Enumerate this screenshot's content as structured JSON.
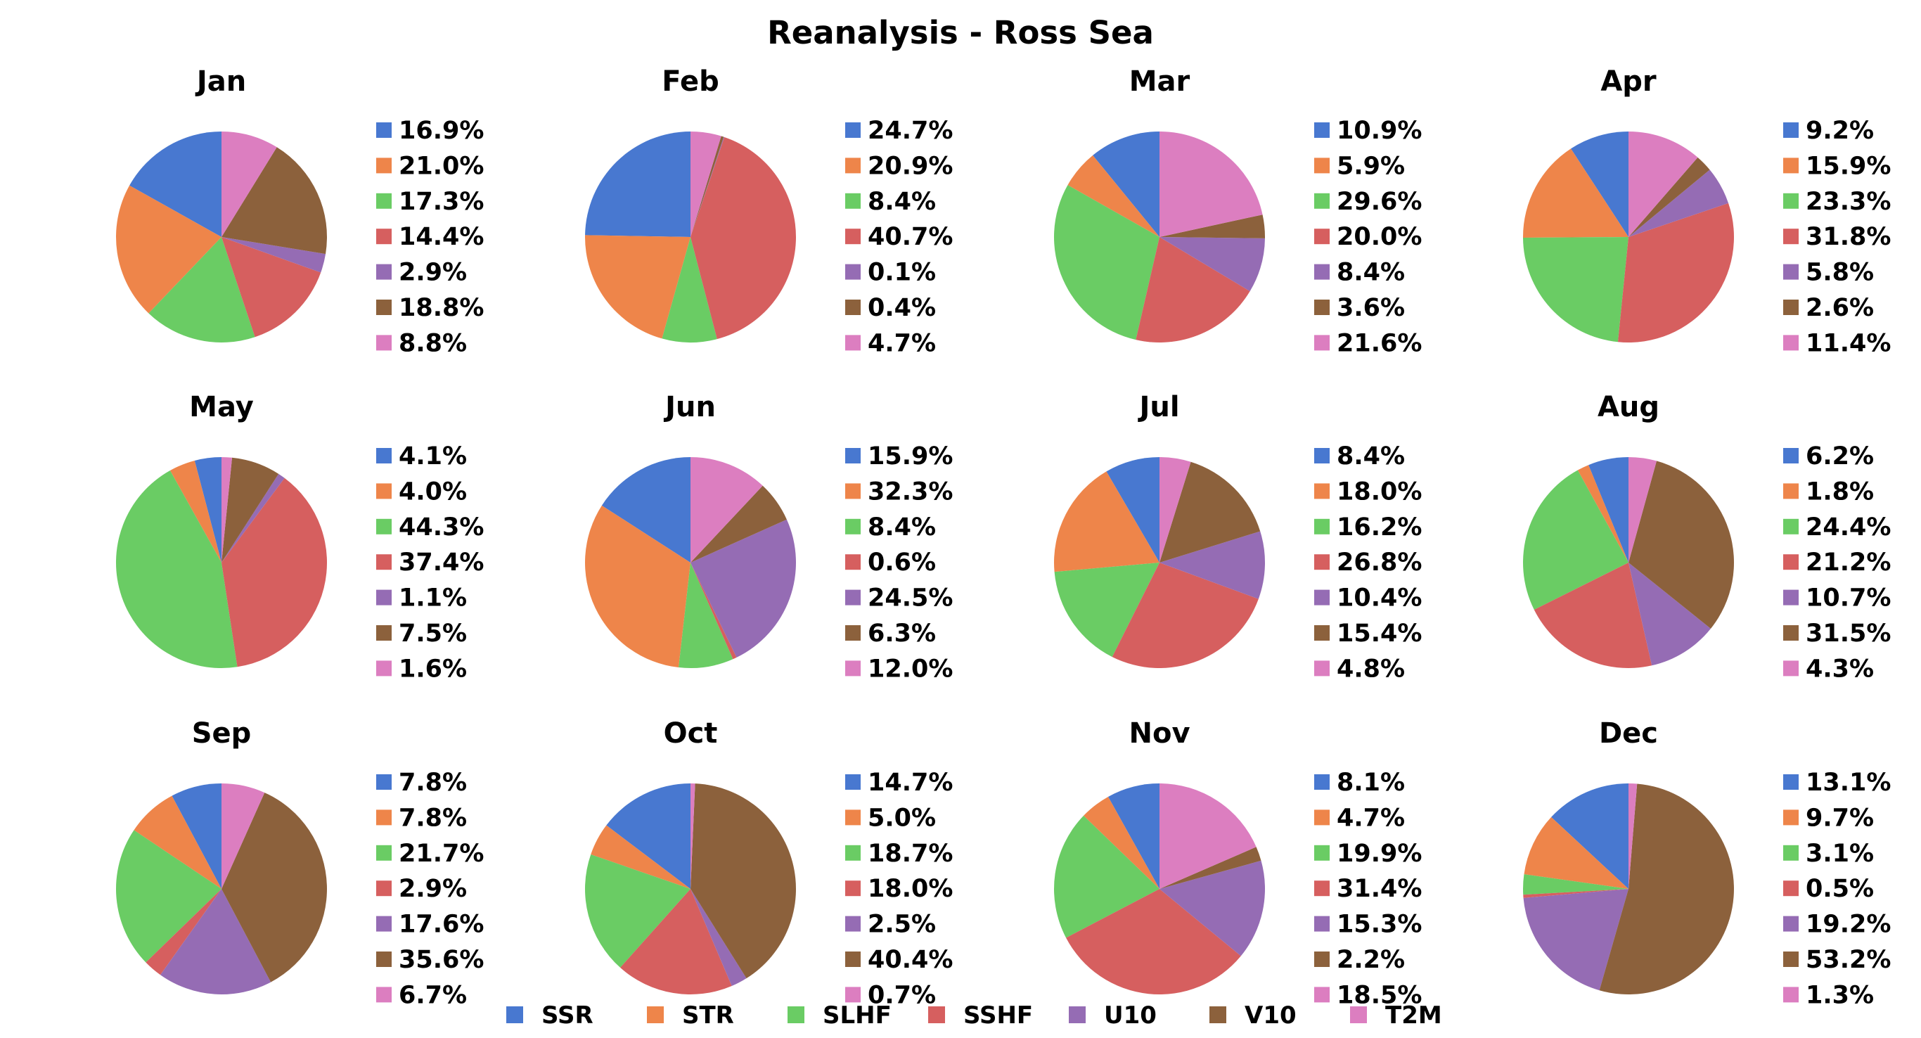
{
  "chart_data": {
    "type": "pie",
    "title": "Reanalysis - Ross Sea",
    "legend": {
      "placement": "bottom-center",
      "labels": [
        "SSR",
        "STR",
        "SLHF",
        "SSHF",
        "U10",
        "V10",
        "T2M"
      ]
    },
    "colors": [
      "#4878d0",
      "#ee854a",
      "#6acc64",
      "#d65f5f",
      "#956cb4",
      "#8c613c",
      "#dc7ec0"
    ],
    "panels": [
      {
        "title": "Jan",
        "values": [
          16.9,
          21.0,
          17.3,
          14.4,
          2.9,
          18.8,
          8.8
        ],
        "labels": [
          "16.9%",
          "21.0%",
          "17.3%",
          "14.4%",
          "2.9%",
          "18.8%",
          "8.8%"
        ]
      },
      {
        "title": "Feb",
        "values": [
          24.7,
          20.9,
          8.4,
          40.7,
          0.1,
          0.4,
          4.7
        ],
        "labels": [
          "24.7%",
          "20.9%",
          "8.4%",
          "40.7%",
          "0.1%",
          "0.4%",
          "4.7%"
        ]
      },
      {
        "title": "Mar",
        "values": [
          10.9,
          5.9,
          29.6,
          20.0,
          8.4,
          3.6,
          21.6
        ],
        "labels": [
          "10.9%",
          "5.9%",
          "29.6%",
          "20.0%",
          "8.4%",
          "3.6%",
          "21.6%"
        ]
      },
      {
        "title": "Apr",
        "values": [
          9.2,
          15.9,
          23.3,
          31.8,
          5.8,
          2.6,
          11.4
        ],
        "labels": [
          "9.2%",
          "15.9%",
          "23.3%",
          "31.8%",
          "5.8%",
          "2.6%",
          "11.4%"
        ]
      },
      {
        "title": "May",
        "values": [
          4.1,
          4.0,
          44.3,
          37.4,
          1.1,
          7.5,
          1.6
        ],
        "labels": [
          "4.1%",
          "4.0%",
          "44.3%",
          "37.4%",
          "1.1%",
          "7.5%",
          "1.6%"
        ]
      },
      {
        "title": "Jun",
        "values": [
          15.9,
          32.3,
          8.4,
          0.6,
          24.5,
          6.3,
          12.0
        ],
        "labels": [
          "15.9%",
          "32.3%",
          "8.4%",
          "0.6%",
          "24.5%",
          "6.3%",
          "12.0%"
        ]
      },
      {
        "title": "Jul",
        "values": [
          8.4,
          18.0,
          16.2,
          26.8,
          10.4,
          15.4,
          4.8
        ],
        "labels": [
          "8.4%",
          "18.0%",
          "16.2%",
          "26.8%",
          "10.4%",
          "15.4%",
          "4.8%"
        ]
      },
      {
        "title": "Aug",
        "values": [
          6.2,
          1.8,
          24.4,
          21.2,
          10.7,
          31.5,
          4.3
        ],
        "labels": [
          "6.2%",
          "1.8%",
          "24.4%",
          "21.2%",
          "10.7%",
          "31.5%",
          "4.3%"
        ]
      },
      {
        "title": "Sep",
        "values": [
          7.8,
          7.8,
          21.7,
          2.9,
          17.6,
          35.6,
          6.7
        ],
        "labels": [
          "7.8%",
          "7.8%",
          "21.7%",
          "2.9%",
          "17.6%",
          "35.6%",
          "6.7%"
        ]
      },
      {
        "title": "Oct",
        "values": [
          14.7,
          5.0,
          18.7,
          18.0,
          2.5,
          40.4,
          0.7
        ],
        "labels": [
          "14.7%",
          "5.0%",
          "18.7%",
          "18.0%",
          "2.5%",
          "40.4%",
          "0.7%"
        ]
      },
      {
        "title": "Nov",
        "values": [
          8.1,
          4.7,
          19.9,
          31.4,
          15.3,
          2.2,
          18.5
        ],
        "labels": [
          "8.1%",
          "4.7%",
          "19.9%",
          "31.4%",
          "15.3%",
          "2.2%",
          "18.5%"
        ]
      },
      {
        "title": "Dec",
        "values": [
          13.1,
          9.7,
          3.1,
          0.5,
          19.2,
          53.2,
          1.3
        ],
        "labels": [
          "13.1%",
          "9.7%",
          "3.1%",
          "0.5%",
          "19.2%",
          "53.2%",
          "1.3%"
        ]
      }
    ]
  }
}
